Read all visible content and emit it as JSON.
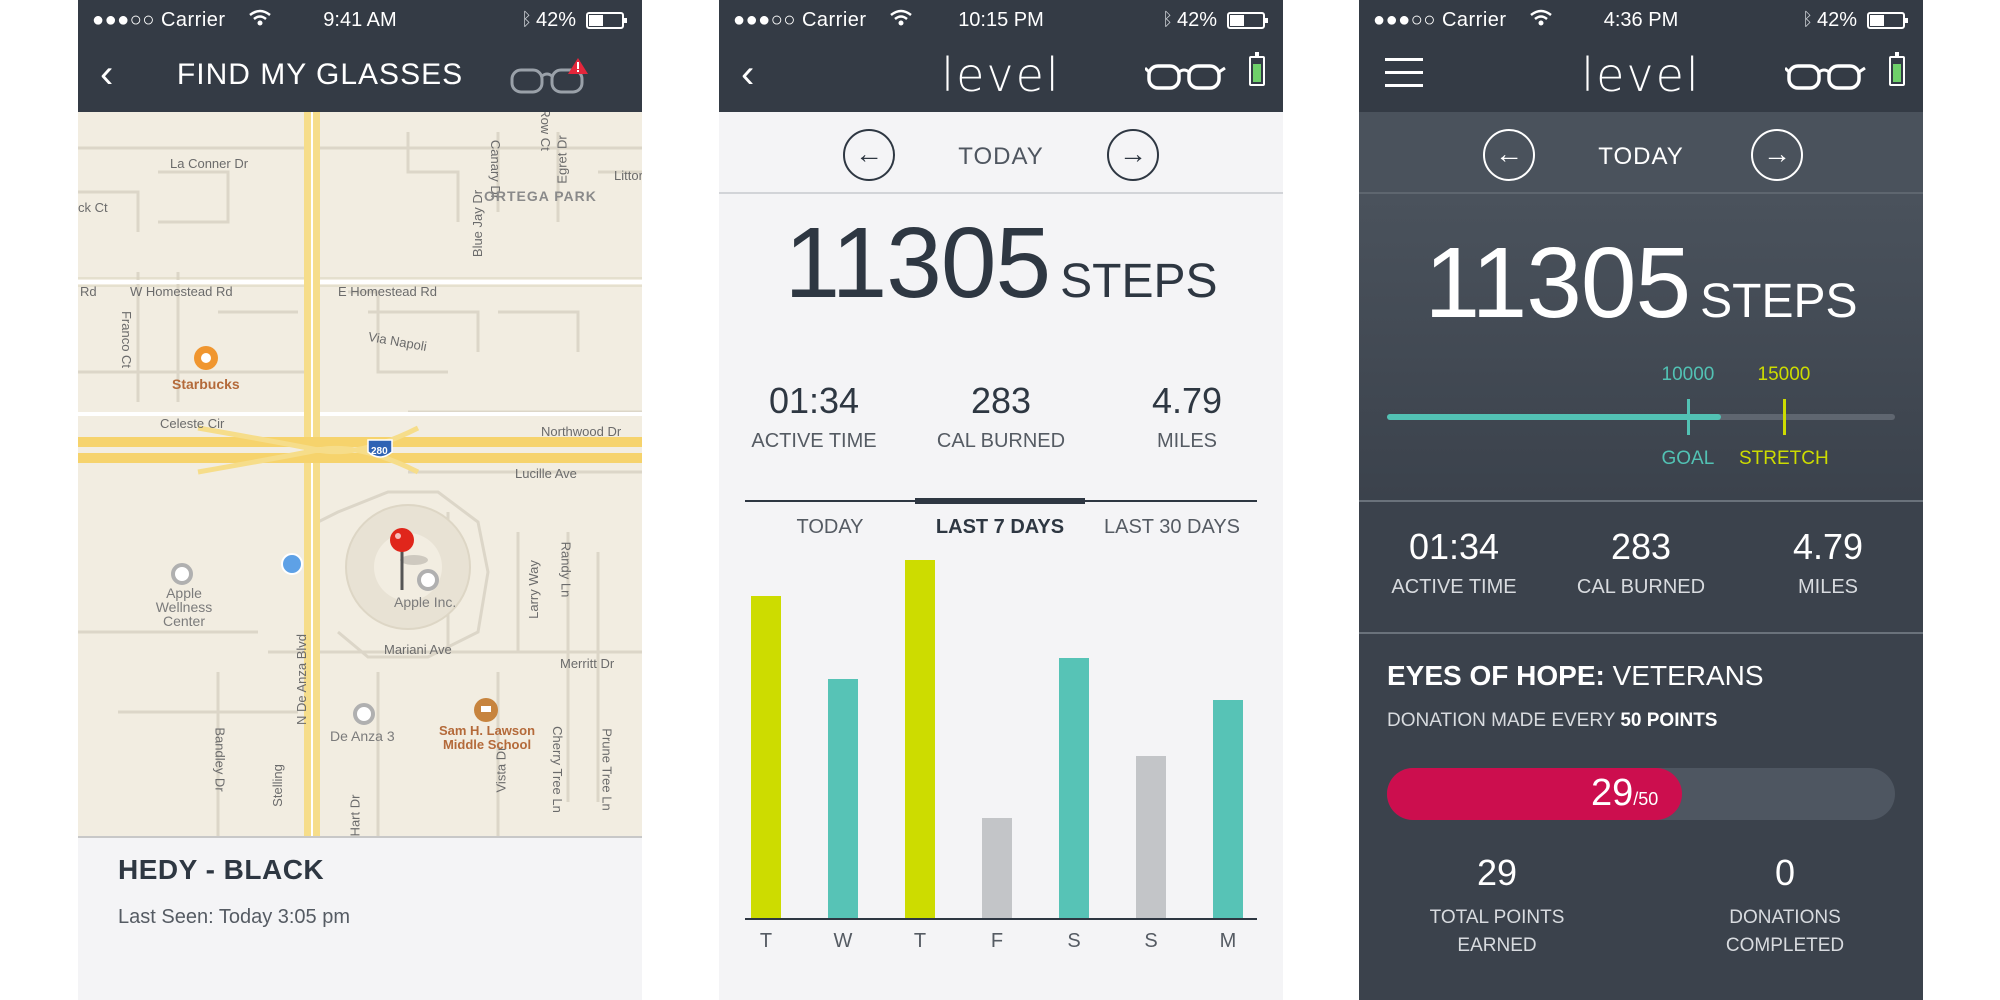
{
  "panel1": {
    "status": {
      "carrier": "●●●○○ Carrier",
      "time": "9:41 AM",
      "battery": "42%"
    },
    "nav": {
      "title": "FIND MY GLASSES"
    },
    "map": {
      "streets": [
        "La Conner Dr",
        "W Homestead Rd",
        "E Homestead Rd",
        "Via Napoli",
        "Celeste Cir",
        "Northwood Dr",
        "Lucille Ave",
        "Mariani Ave",
        "Merritt Dr",
        "N De Anza Blvd",
        "Franco Ct",
        "Bandley Dr",
        "Larry Way",
        "Randy Ln",
        "Vista Dr",
        "Cherry Tree Ln",
        "Prune Tree Ln",
        "Blue Jay Dr",
        "Canary Dr",
        "Egret Dr",
        "Littoral",
        "Hart Dr",
        "Stelling",
        "Rd",
        "Row Ct",
        "ck Ct"
      ],
      "area": "ORTEGA PARK",
      "pois": [
        "Starbucks",
        "Apple Wellness Center",
        "Apple Inc.",
        "De Anza 3",
        "Sam H. Lawson Middle School"
      ],
      "highway": "280"
    },
    "device": {
      "name": "HEDY - BLACK",
      "last_seen": "Last Seen: Today 3:05 pm"
    }
  },
  "panel2": {
    "status": {
      "carrier": "●●●○○ Carrier",
      "time": "10:15 PM",
      "battery": "42%"
    },
    "nav": {
      "logo": "level"
    },
    "date": {
      "label": "TODAY",
      "prev": "←",
      "next": "→"
    },
    "steps": {
      "value": "11305",
      "unit": "STEPS"
    },
    "stats": [
      {
        "value": "01:34",
        "label": "ACTIVE TIME"
      },
      {
        "value": "283",
        "label": "CAL BURNED"
      },
      {
        "value": "4.79",
        "label": "MILES"
      }
    ],
    "tabs": [
      {
        "label": "TODAY"
      },
      {
        "label": "LAST 7 DAYS"
      },
      {
        "label": "LAST 30 DAYS"
      }
    ],
    "active_tab": "LAST 7 DAYS",
    "colors": {
      "stretch": "#cddc00",
      "goal": "#57c3b6",
      "below": "#c3c5c8"
    }
  },
  "chart_data": {
    "type": "bar",
    "categories": [
      "T",
      "W",
      "T",
      "F",
      "S",
      "S",
      "M"
    ],
    "values": [
      0.9,
      0.667,
      1.0,
      0.28,
      0.727,
      0.453,
      0.61
    ],
    "status": [
      "stretch",
      "goal",
      "stretch",
      "below",
      "goal",
      "below",
      "goal"
    ],
    "ylim": [
      0,
      1
    ],
    "title": "",
    "xlabel": "",
    "ylabel": ""
  },
  "panel3": {
    "status": {
      "carrier": "●●●○○ Carrier",
      "time": "4:36 PM",
      "battery": "42%"
    },
    "nav": {
      "logo": "level"
    },
    "date": {
      "label": "TODAY",
      "prev": "←",
      "next": "→"
    },
    "steps": {
      "value": "11305",
      "unit": "STEPS"
    },
    "goal": {
      "goal_value": "10000",
      "goal_label": "GOAL",
      "stretch_value": "15000",
      "stretch_label": "STRETCH",
      "progress": 0.657,
      "goal_position": 0.59,
      "stretch_position": 0.78,
      "goal_color": "#52c2b4",
      "stretch_color": "#cddc00"
    },
    "stats": [
      {
        "value": "01:34",
        "label": "ACTIVE TIME"
      },
      {
        "value": "283",
        "label": "CAL BURNED"
      },
      {
        "value": "4.79",
        "label": "MILES"
      }
    ],
    "hope": {
      "title_bold": "EYES OF HOPE:",
      "title_rest": " VETERANS",
      "note_prefix": "DONATION MADE EVERY ",
      "note_bold": "50 POINTS"
    },
    "points": {
      "current": "29",
      "total": "/50",
      "progress": 0.58,
      "color": "#cc0e4e"
    },
    "totals": [
      {
        "value": "29",
        "label_line1": "TOTAL POINTS",
        "label_line2": "EARNED"
      },
      {
        "value": "0",
        "label_line1": "DONATIONS",
        "label_line2": "COMPLETED"
      }
    ]
  }
}
